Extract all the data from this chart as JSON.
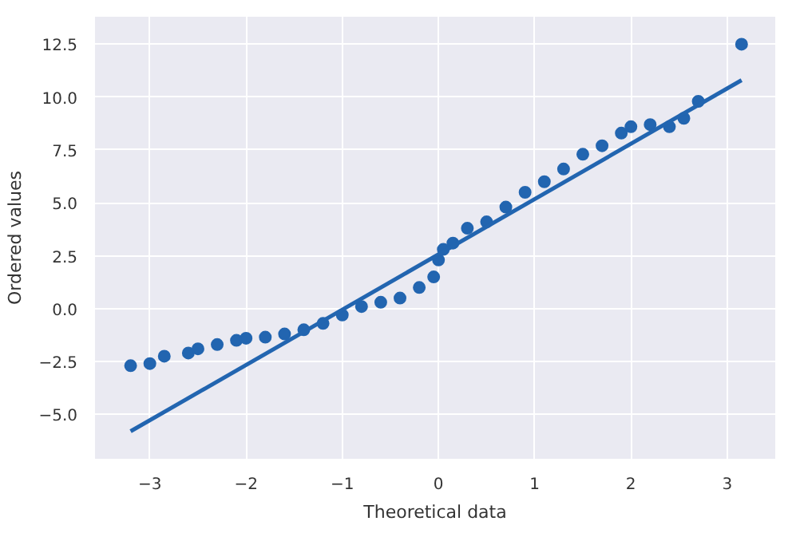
{
  "chart_data": {
    "type": "scatter",
    "xlabel": "Theoretical data",
    "ylabel": "Ordered values",
    "xlim": [
      -3.57,
      3.5
    ],
    "ylim": [
      -7.1,
      13.8
    ],
    "xticks": [
      {
        "value": -3,
        "label": "−3"
      },
      {
        "value": -2,
        "label": "−2"
      },
      {
        "value": -1,
        "label": "−1"
      },
      0,
      1,
      2,
      3
    ],
    "yticks": [
      {
        "value": -5,
        "label": "−5.0"
      },
      {
        "value": -2.5,
        "label": "−2.5"
      },
      {
        "value": 0,
        "label": "0.0"
      },
      {
        "value": 2.5,
        "label": "2.5"
      },
      {
        "value": 5,
        "label": "5.0"
      },
      {
        "value": 7.5,
        "label": "7.5"
      },
      {
        "value": 10,
        "label": "10.0"
      },
      {
        "value": 12.5,
        "label": "12.5"
      }
    ],
    "grid": true,
    "series": [
      {
        "marker": "circle",
        "color": "#2265b0",
        "x": [
          -3.2,
          -3.0,
          -2.85,
          -2.6,
          -2.5,
          -2.3,
          -2.1,
          -2.0,
          -1.8,
          -1.6,
          -1.4,
          -1.2,
          -1.0,
          -0.8,
          -0.6,
          -0.4,
          -0.2,
          -0.05,
          0.0,
          0.05,
          0.15,
          0.3,
          0.5,
          0.7,
          0.9,
          1.1,
          1.3,
          1.5,
          1.7,
          1.9,
          2.0,
          2.2,
          2.4,
          2.55,
          2.7,
          3.15
        ],
        "values": [
          -2.7,
          -2.6,
          -2.25,
          -2.1,
          -1.9,
          -1.7,
          -1.5,
          -1.4,
          -1.35,
          -1.2,
          -1.0,
          -0.7,
          -0.3,
          0.1,
          0.3,
          0.5,
          1.0,
          1.5,
          2.3,
          2.8,
          3.1,
          3.8,
          4.1,
          4.8,
          5.5,
          6.0,
          6.6,
          7.3,
          7.7,
          8.3,
          8.6,
          8.7,
          8.6,
          9.0,
          9.8,
          12.5
        ]
      },
      {
        "type": "line",
        "marker": "none",
        "color": "#2265b0",
        "x": [
          -3.2,
          3.15
        ],
        "values": [
          -5.8,
          10.8
        ]
      }
    ]
  }
}
